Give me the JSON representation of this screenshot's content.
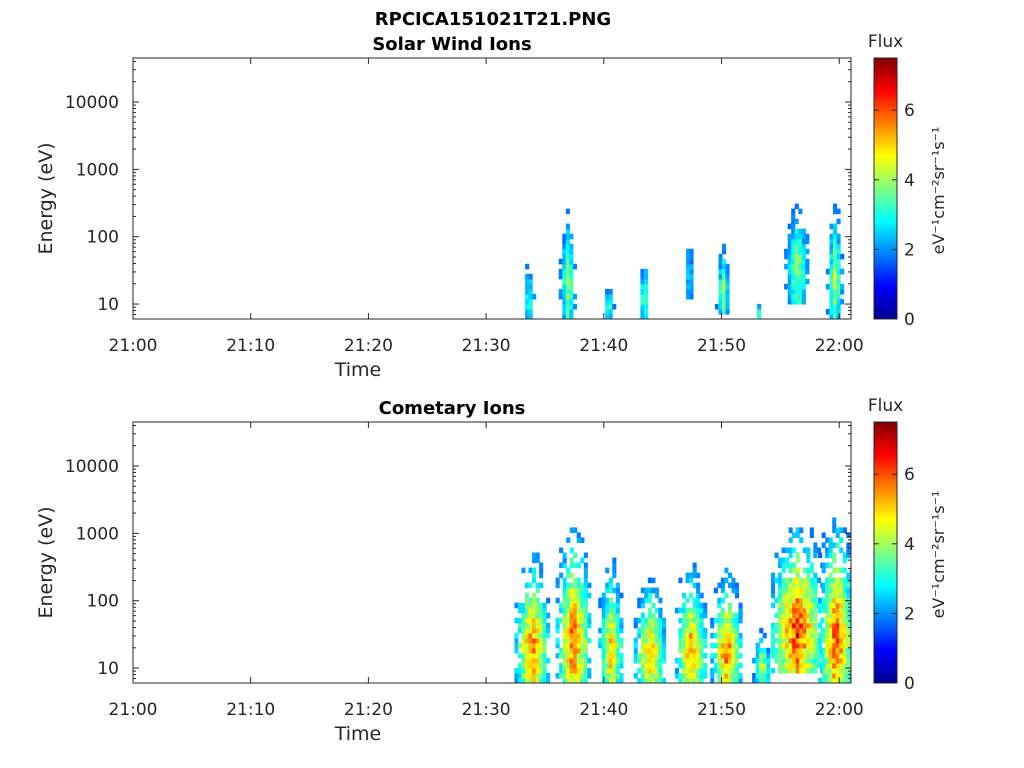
{
  "figure": {
    "title": "RPCICA151021T21.PNG"
  },
  "colors": {
    "axis": "#262626",
    "colormap": [
      "#00008f",
      "#0000ff",
      "#0080ff",
      "#00ffff",
      "#80ff80",
      "#ffff00",
      "#ff8000",
      "#ff0000",
      "#800000"
    ]
  },
  "chart_data": [
    {
      "type": "heatmap",
      "title": "Solar Wind Ions",
      "xlabel": "Time",
      "ylabel": "Energy (eV)",
      "xticks": [
        "21:00",
        "21:10",
        "21:20",
        "21:30",
        "21:40",
        "21:50",
        "22:00"
      ],
      "xlim_minutes": [
        0,
        61
      ],
      "ylim": [
        6,
        45000
      ],
      "yscale": "log",
      "yticks": [
        10,
        100,
        1000,
        10000
      ],
      "ytick_labels": [
        "10",
        "100",
        "1000",
        "10000"
      ],
      "colorbar": {
        "title": "Flux",
        "label": "eV⁻¹cm⁻²sr⁻¹s⁻¹",
        "range": [
          0,
          7.5
        ],
        "ticks": [
          0,
          2,
          4,
          6
        ]
      },
      "bursts": [
        {
          "t": 33.5,
          "tw": 0.35,
          "emin": 6,
          "emax": 70,
          "peak": 3.4
        },
        {
          "t": 36.8,
          "tw": 0.45,
          "emin": 7,
          "emax": 280,
          "peak": 4.2
        },
        {
          "t": 40.3,
          "tw": 0.35,
          "emin": 6,
          "emax": 30,
          "peak": 3.4
        },
        {
          "t": 43.3,
          "tw": 0.35,
          "emin": 6,
          "emax": 65,
          "peak": 3.8
        },
        {
          "t": 47.1,
          "tw": 0.3,
          "emin": 15,
          "emax": 160,
          "peak": 3.0
        },
        {
          "t": 50.0,
          "tw": 0.4,
          "emin": 8,
          "emax": 95,
          "peak": 4.0
        },
        {
          "t": 53.0,
          "tw": 0.2,
          "emin": 6,
          "emax": 12,
          "peak": 3.2
        },
        {
          "t": 56.3,
          "tw": 0.7,
          "emin": 12,
          "emax": 450,
          "peak": 4.2
        },
        {
          "t": 59.5,
          "tw": 0.45,
          "emin": 7,
          "emax": 450,
          "peak": 4.3
        }
      ]
    },
    {
      "type": "heatmap",
      "title": "Cometary Ions",
      "xlabel": "Time",
      "ylabel": "Energy (eV)",
      "xticks": [
        "21:00",
        "21:10",
        "21:20",
        "21:30",
        "21:40",
        "21:50",
        "22:00"
      ],
      "xlim_minutes": [
        0,
        61
      ],
      "ylim": [
        6,
        45000
      ],
      "yscale": "log",
      "yticks": [
        10,
        100,
        1000,
        10000
      ],
      "ytick_labels": [
        "10",
        "100",
        "1000",
        "10000"
      ],
      "colorbar": {
        "title": "Flux",
        "label": "eV⁻¹cm⁻²sr⁻¹s⁻¹",
        "range": [
          0,
          7.5
        ],
        "ticks": [
          0,
          2,
          4,
          6
        ]
      },
      "bursts": [
        {
          "t": 33.8,
          "tw": 1.0,
          "emin": 6,
          "emax": 450,
          "peak": 6.0
        },
        {
          "t": 37.3,
          "tw": 1.0,
          "emin": 6,
          "emax": 1100,
          "peak": 6.2
        },
        {
          "t": 40.5,
          "tw": 0.7,
          "emin": 6,
          "emax": 400,
          "peak": 5.4
        },
        {
          "t": 43.8,
          "tw": 0.9,
          "emin": 6,
          "emax": 200,
          "peak": 5.6
        },
        {
          "t": 47.3,
          "tw": 0.9,
          "emin": 6,
          "emax": 300,
          "peak": 5.8
        },
        {
          "t": 50.3,
          "tw": 0.9,
          "emin": 6,
          "emax": 250,
          "peak": 6.0
        },
        {
          "t": 53.3,
          "tw": 0.5,
          "emin": 6,
          "emax": 40,
          "peak": 4.6
        },
        {
          "t": 56.3,
          "tw": 1.5,
          "emin": 10,
          "emax": 1100,
          "peak": 6.6
        },
        {
          "t": 59.6,
          "tw": 1.0,
          "emin": 6,
          "emax": 1400,
          "peak": 6.4
        }
      ]
    }
  ]
}
